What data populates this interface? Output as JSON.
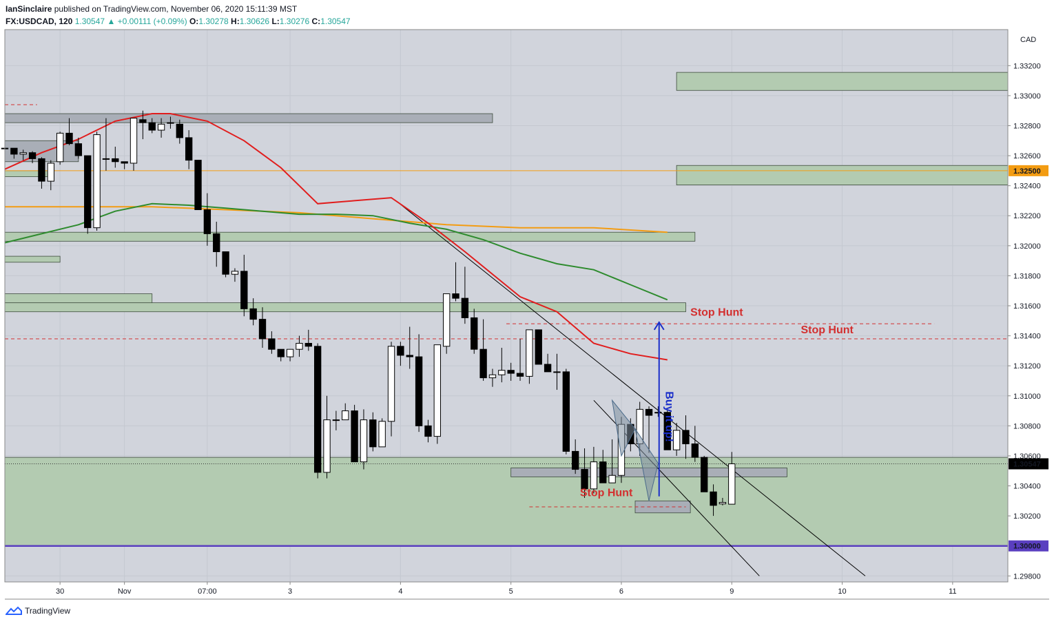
{
  "header": {
    "author": "IanSinclaire",
    "published_text": "published on TradingView.com, November 06, 2020 15:11:39 MST",
    "symbol": "FX:USDCAD, 120",
    "last": "1.30547",
    "change": "▲ +0.00111 (+0.09%)",
    "o_label": "O:",
    "o": "1.30278",
    "h_label": "H:",
    "h": "1.30626",
    "l_label": "L:",
    "l": "1.30276",
    "c_label": "C:",
    "c": "1.30547"
  },
  "footer": {
    "brand": "TradingView"
  },
  "colors": {
    "up_candle": "#ffffff",
    "down_candle": "#000000",
    "ema_fast": "#e11d1d",
    "ema_mid": "#2e8b2e",
    "ema_slow": "#f39c12",
    "zone_green": "#b3cbb1",
    "zone_gray": "#a9aeb7",
    "stop_hunt": "#d32f2f",
    "buy_arrow": "#1a2ec9",
    "support_line": "#5a3fc0",
    "grid": "#d1d4dc",
    "plot_bg": "#d1d4dc"
  },
  "chart_data": {
    "type": "candlestick",
    "currency": "CAD",
    "y_ticks": [
      "1.33200",
      "1.33000",
      "1.32800",
      "1.32600",
      "1.32400",
      "1.32200",
      "1.32000",
      "1.31800",
      "1.31600",
      "1.31400",
      "1.31200",
      "1.31000",
      "1.30800",
      "1.30600",
      "1.30400",
      "1.30200",
      "1.29800"
    ],
    "y_tick_values": [
      1.332,
      1.33,
      1.328,
      1.326,
      1.324,
      1.322,
      1.32,
      1.318,
      1.316,
      1.314,
      1.312,
      1.31,
      1.308,
      1.306,
      1.304,
      1.302,
      1.298
    ],
    "ylim": [
      1.2976,
      1.3344
    ],
    "x_ticks": [
      "30",
      "Nov",
      "07:00",
      "3",
      "4",
      "5",
      "6",
      "9",
      "10",
      "11"
    ],
    "x_tick_values": [
      8,
      15,
      24,
      33,
      45,
      57,
      69,
      81,
      93,
      105
    ],
    "xlim": [
      2,
      111
    ],
    "price_labels": [
      {
        "label": "1.32500",
        "value": 1.325,
        "color": "#f39c12"
      },
      {
        "label": "1.30547",
        "value": 1.30547,
        "color": "#000000"
      },
      {
        "label": "1.30000",
        "value": 1.3,
        "color": "#5a3fc0"
      }
    ],
    "candles_ohlc": [
      [
        1.3265,
        1.3266,
        1.3262,
        1.3265
      ],
      [
        1.3265,
        1.3265,
        1.3258,
        1.3261
      ],
      [
        1.3261,
        1.3264,
        1.3257,
        1.3262
      ],
      [
        1.3262,
        1.3263,
        1.3255,
        1.3258
      ],
      [
        1.3258,
        1.3259,
        1.3238,
        1.3243
      ],
      [
        1.3243,
        1.3257,
        1.3237,
        1.3255
      ],
      [
        1.3256,
        1.3276,
        1.3254,
        1.3275
      ],
      [
        1.3275,
        1.3285,
        1.3267,
        1.3268
      ],
      [
        1.3268,
        1.3272,
        1.3258,
        1.326
      ],
      [
        1.326,
        1.326,
        1.3208,
        1.3212
      ],
      [
        1.3212,
        1.3276,
        1.321,
        1.3274
      ],
      [
        1.3258,
        1.3285,
        1.325,
        1.3258
      ],
      [
        1.3258,
        1.3266,
        1.3252,
        1.3256
      ],
      [
        1.3256,
        1.3256,
        1.3251,
        1.3255
      ],
      [
        1.3255,
        1.3285,
        1.325,
        1.3285
      ],
      [
        1.3284,
        1.329,
        1.3271,
        1.3282
      ],
      [
        1.3282,
        1.3285,
        1.3275,
        1.3277
      ],
      [
        1.3277,
        1.3285,
        1.3272,
        1.3281
      ],
      [
        1.3282,
        1.3286,
        1.3278,
        1.3282
      ],
      [
        1.3281,
        1.3284,
        1.3268,
        1.3272
      ],
      [
        1.3272,
        1.3277,
        1.3251,
        1.3257
      ],
      [
        1.3257,
        1.3249,
        1.3226,
        1.3224
      ],
      [
        1.3224,
        1.3235,
        1.32,
        1.3208
      ],
      [
        1.3208,
        1.3216,
        1.3186,
        1.3196
      ],
      [
        1.3196,
        1.3191,
        1.3179,
        1.3181
      ],
      [
        1.3181,
        1.3185,
        1.3176,
        1.3183
      ],
      [
        1.3183,
        1.3194,
        1.3153,
        1.3158
      ],
      [
        1.3158,
        1.3165,
        1.3147,
        1.3151
      ],
      [
        1.3151,
        1.3159,
        1.3132,
        1.3138
      ],
      [
        1.3138,
        1.3143,
        1.3128,
        1.3131
      ],
      [
        1.3131,
        1.3131,
        1.3123,
        1.3126
      ],
      [
        1.3126,
        1.3131,
        1.3123,
        1.3131
      ],
      [
        1.3131,
        1.314,
        1.3126,
        1.3135
      ],
      [
        1.3135,
        1.3144,
        1.313,
        1.3133
      ],
      [
        1.3133,
        1.3135,
        1.3045,
        1.3049
      ],
      [
        1.3049,
        1.31,
        1.3045,
        1.3084
      ],
      [
        1.3084,
        1.309,
        1.3077,
        1.3084
      ],
      [
        1.3084,
        1.3095,
        1.3087,
        1.309
      ],
      [
        1.309,
        1.3094,
        1.3056,
        1.3056
      ],
      [
        1.3056,
        1.3091,
        1.3051,
        1.3084
      ],
      [
        1.3084,
        1.3089,
        1.3063,
        1.3066
      ],
      [
        1.3066,
        1.3085,
        1.3066,
        1.3083
      ],
      [
        1.3083,
        1.3136,
        1.3073,
        1.3133
      ],
      [
        1.3133,
        1.3136,
        1.312,
        1.3127
      ],
      [
        1.3127,
        1.3146,
        1.3118,
        1.3126
      ],
      [
        1.3126,
        1.3141,
        1.3076,
        1.308
      ],
      [
        1.308,
        1.3084,
        1.3069,
        1.3073
      ],
      [
        1.3073,
        1.3134,
        1.3068,
        1.3134
      ],
      [
        1.3133,
        1.3168,
        1.3128,
        1.3168
      ],
      [
        1.3168,
        1.3189,
        1.3163,
        1.3165
      ],
      [
        1.3165,
        1.3186,
        1.3148,
        1.3152
      ],
      [
        1.3152,
        1.3158,
        1.3128,
        1.3131
      ],
      [
        1.3131,
        1.3151,
        1.311,
        1.3112
      ],
      [
        1.3112,
        1.3118,
        1.3106,
        1.3114
      ],
      [
        1.3114,
        1.3132,
        1.3109,
        1.3117
      ],
      [
        1.3117,
        1.3122,
        1.311,
        1.3115
      ],
      [
        1.3115,
        1.3138,
        1.311,
        1.3113
      ],
      [
        1.3113,
        1.3143,
        1.3108,
        1.3144
      ],
      [
        1.3144,
        1.3137,
        1.3125,
        1.3121
      ],
      [
        1.3121,
        1.3128,
        1.3116,
        1.3116
      ],
      [
        1.3116,
        1.3128,
        1.3104,
        1.3116
      ],
      [
        1.3116,
        1.3118,
        1.3061,
        1.3063
      ],
      [
        1.3063,
        1.3071,
        1.3048,
        1.3051
      ],
      [
        1.3051,
        1.3065,
        1.3032,
        1.3038
      ],
      [
        1.3038,
        1.3066,
        1.3035,
        1.3056
      ],
      [
        1.3056,
        1.3064,
        1.3044,
        1.3042
      ],
      [
        1.3042,
        1.3071,
        1.3047,
        1.3047
      ],
      [
        1.3047,
        1.3086,
        1.3042,
        1.3081
      ],
      [
        1.3081,
        1.3085,
        1.3063,
        1.3068
      ],
      [
        1.3068,
        1.3096,
        1.306,
        1.3091
      ],
      [
        1.3091,
        1.3093,
        1.3062,
        1.3087
      ],
      [
        1.3089,
        1.3093,
        1.3086,
        1.3089
      ],
      [
        1.3089,
        1.3091,
        1.3064,
        1.3064
      ],
      [
        1.3064,
        1.3082,
        1.306,
        1.3077
      ],
      [
        1.3077,
        1.3087,
        1.3058,
        1.3068
      ],
      [
        1.3068,
        1.308,
        1.3056,
        1.3059
      ],
      [
        1.3059,
        1.306,
        1.3036,
        1.3036
      ],
      [
        1.3036,
        1.3041,
        1.302,
        1.3027
      ],
      [
        1.3028,
        1.3032,
        1.3027,
        1.3029
      ],
      [
        1.30278,
        1.30626,
        1.30276,
        1.30547
      ]
    ],
    "ema_fast": [
      [
        2,
        1.3251
      ],
      [
        6,
        1.3262
      ],
      [
        10,
        1.3271
      ],
      [
        14,
        1.3283
      ],
      [
        18,
        1.3288
      ],
      [
        20,
        1.3288
      ],
      [
        24,
        1.3283
      ],
      [
        28,
        1.327
      ],
      [
        32,
        1.3252
      ],
      [
        36,
        1.3228
      ],
      [
        40,
        1.323
      ],
      [
        44,
        1.3232
      ],
      [
        48,
        1.3215
      ],
      [
        52,
        1.3196
      ],
      [
        56,
        1.3176
      ],
      [
        58,
        1.3166
      ],
      [
        62,
        1.3156
      ],
      [
        66,
        1.3135
      ],
      [
        70,
        1.3128
      ],
      [
        74,
        1.3124
      ]
    ],
    "ema_mid": [
      [
        2,
        1.3202
      ],
      [
        6,
        1.3208
      ],
      [
        10,
        1.3214
      ],
      [
        14,
        1.3223
      ],
      [
        18,
        1.3228
      ],
      [
        22,
        1.3227
      ],
      [
        26,
        1.3225
      ],
      [
        30,
        1.3223
      ],
      [
        34,
        1.3221
      ],
      [
        38,
        1.3221
      ],
      [
        42,
        1.322
      ],
      [
        46,
        1.3215
      ],
      [
        50,
        1.3211
      ],
      [
        54,
        1.3204
      ],
      [
        58,
        1.3195
      ],
      [
        62,
        1.3188
      ],
      [
        66,
        1.3184
      ],
      [
        70,
        1.3174
      ],
      [
        74,
        1.3164
      ]
    ],
    "ema_slow": [
      [
        2,
        1.3226
      ],
      [
        10,
        1.3226
      ],
      [
        18,
        1.3226
      ],
      [
        26,
        1.3224
      ],
      [
        34,
        1.3222
      ],
      [
        42,
        1.3218
      ],
      [
        50,
        1.3214
      ],
      [
        58,
        1.3212
      ],
      [
        66,
        1.3212
      ],
      [
        74,
        1.3209
      ]
    ],
    "annotations": [
      {
        "text": "Stop Hunt",
        "price": 1.3151
      },
      {
        "text": "Stop Hunt",
        "price": 1.315
      },
      {
        "text": "Stop Hunt",
        "price": 1.3034
      },
      {
        "text": "Buy it up!"
      }
    ]
  }
}
